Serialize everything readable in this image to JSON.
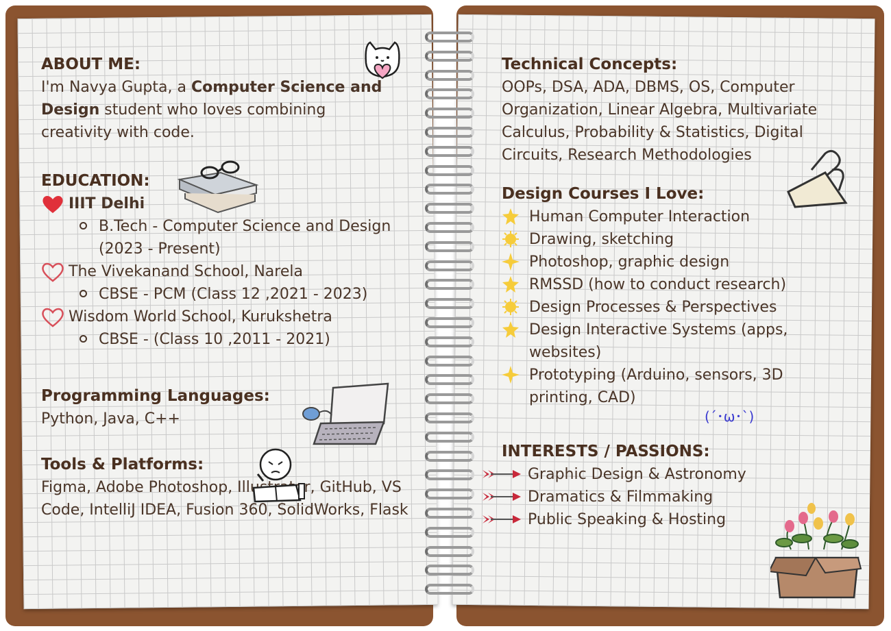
{
  "left": {
    "about": {
      "heading": "ABOUT ME:",
      "text_a": "I'm Navya Gupta, a ",
      "text_bold": "Computer Science and Design",
      "text_b": " student who loves combining creativity with code."
    },
    "education": {
      "heading": "EDUCATION:",
      "schools": [
        {
          "name": "IIIT Delhi",
          "detail": "B.Tech - Computer Science and Design (2023 - Present)"
        },
        {
          "name": "The Vivekanand School, Narela",
          "detail": "CBSE - PCM (Class 12 ,2021 - 2023)"
        },
        {
          "name": "Wisdom World School, Kurukshetra",
          "detail": "CBSE - (Class 10 ,2011 - 2021)"
        }
      ]
    },
    "programming": {
      "heading": "Programming Languages:",
      "text": "Python, Java, C++"
    },
    "tools": {
      "heading": "Tools & Platforms:",
      "text": "Figma, Adobe Photoshop, Illustrator, GitHub, VS Code, IntelliJ IDEA, Fusion 360, SolidWorks, Flask"
    }
  },
  "right": {
    "technical": {
      "heading": "Technical Concepts:",
      "text": "OOPs, DSA, ADA, DBMS, OS, Computer Organization, Linear Algebra, Multivariate Calculus, Probability & Statistics, Digital Circuits, Research Methodologies"
    },
    "design": {
      "heading": "Design Courses I Love:",
      "items": [
        "Human Computer Interaction",
        "Drawing, sketching",
        "Photoshop, graphic design",
        "RMSSD (how to conduct research)",
        "Design Processes & Perspectives",
        "Design Interactive Systems (apps, websites)",
        "Prototyping (Arduino, sensors, 3D printing, CAD)"
      ]
    },
    "kaomoji": "(´･ω･`)",
    "interests": {
      "heading": "INTERESTS / PASSIONS:",
      "items": [
        "Graphic Design & Astronomy",
        "Dramatics & Filmmaking",
        "Public Speaking & Hosting"
      ]
    }
  },
  "colors": {
    "cover": "#8b5430",
    "text": "#4a3528",
    "heart_fill": "#e0303a",
    "heart_outline": "#d8505a",
    "star": "#f6cc3a",
    "arrow": "#c8283a"
  }
}
